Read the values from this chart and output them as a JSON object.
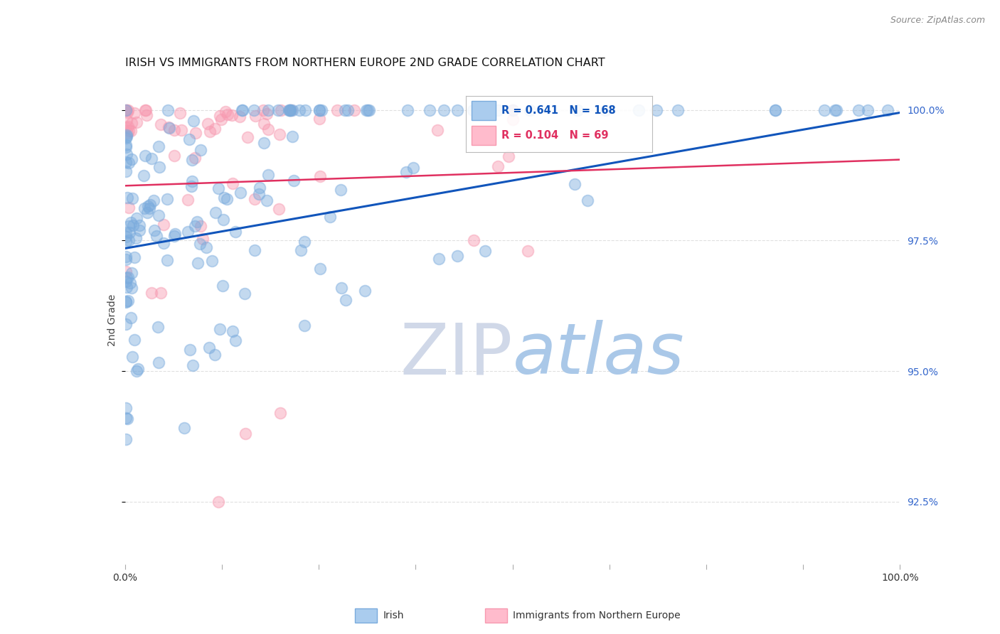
{
  "title": "IRISH VS IMMIGRANTS FROM NORTHERN EUROPE 2ND GRADE CORRELATION CHART",
  "source": "Source: ZipAtlas.com",
  "ylabel": "2nd Grade",
  "y_ticks": [
    92.5,
    95.0,
    97.5,
    100.0
  ],
  "y_tick_labels": [
    "92.5%",
    "95.0%",
    "97.5%",
    "100.0%"
  ],
  "x_range": [
    0.0,
    1.0
  ],
  "y_range": [
    91.3,
    100.65
  ],
  "legend_irish": "Irish",
  "legend_immigrants": "Immigrants from Northern Europe",
  "R_irish": 0.641,
  "N_irish": 168,
  "R_immigrants": 0.104,
  "N_immigrants": 69,
  "irish_color": "#7aabdd",
  "immigrants_color": "#f799b0",
  "irish_line_color": "#1155bb",
  "immigrants_line_color": "#e03060",
  "irish_line_y0": 97.35,
  "irish_line_y1": 99.95,
  "imm_line_y0": 98.55,
  "imm_line_y1": 99.05,
  "watermark_zip": "ZIP",
  "watermark_atlas": "atlas",
  "watermark_color_zip": "#d0d8e8",
  "watermark_color_atlas": "#aac8e8",
  "background_color": "#ffffff",
  "grid_color": "#e0e0e0",
  "title_fontsize": 11.5,
  "source_fontsize": 9,
  "marker_size": 130,
  "marker_alpha": 0.45,
  "marker_linewidth": 1.3
}
